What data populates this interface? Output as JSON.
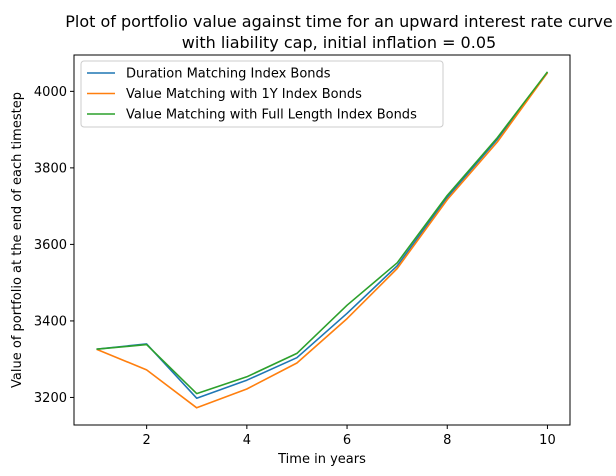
{
  "chart_data": {
    "type": "line",
    "title": [
      "Plot of portfolio value against time for an upward interest rate curve",
      "with liability cap, initial inflation = 0.05"
    ],
    "xlabel": "Time in years",
    "ylabel": "Value of portfolio at the end of each timestep",
    "xlim": [
      0.55,
      10.45
    ],
    "ylim": [
      3128,
      4095
    ],
    "xticks": [
      2,
      4,
      6,
      8,
      10
    ],
    "yticks": [
      3200,
      3400,
      3600,
      3800,
      4000
    ],
    "grid": false,
    "legend_position": "upper left",
    "x": [
      1,
      2,
      3,
      4,
      5,
      6,
      7,
      8,
      9,
      10
    ],
    "series": [
      {
        "name": "Duration Matching Index Bonds",
        "color": "#1f77b4",
        "values": [
          3326,
          3340,
          3198,
          3245,
          3304,
          3420,
          3544,
          3723,
          3875,
          4049
        ]
      },
      {
        "name": "Value Matching with 1Y Index Bonds",
        "color": "#ff7f0e",
        "values": [
          3326,
          3272,
          3173,
          3222,
          3290,
          3406,
          3537,
          3717,
          3868,
          4049
        ]
      },
      {
        "name": "Value Matching with Full Length Index Bonds",
        "color": "#2ca02c",
        "values": [
          3326,
          3338,
          3210,
          3254,
          3315,
          3441,
          3552,
          3728,
          3879,
          4051
        ]
      }
    ]
  }
}
